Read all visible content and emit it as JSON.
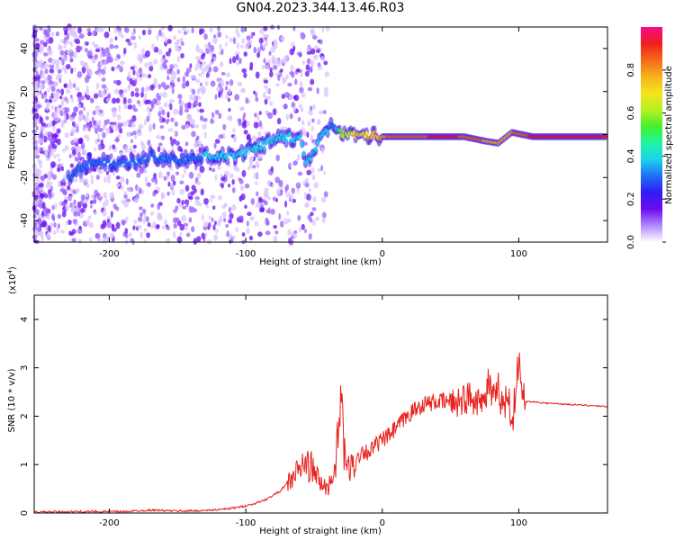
{
  "title": "GN04.2023.344.13.46.R03",
  "colors": {
    "snr_line": "#e8221e",
    "colorbar": [
      "#ffffff",
      "#b089ff",
      "#6a0cf0",
      "#2f1cf5",
      "#1f70f5",
      "#1cd2ec",
      "#1ef5a2",
      "#46f02a",
      "#b8f020",
      "#f5e51c",
      "#f5b21a",
      "#f56a1a",
      "#f01e1e",
      "#f50a8c"
    ]
  },
  "chart_data": [
    {
      "type": "heatmap",
      "xlabel": "Height of straight line (km)",
      "ylabel": "Frequency (Hz)",
      "xlim": [
        -255,
        165
      ],
      "ylim": [
        -50,
        50
      ],
      "xticks": [
        -200,
        -100,
        0,
        100
      ],
      "yticks": [
        -40,
        -20,
        0,
        20,
        40
      ],
      "colorbar": {
        "label": "Normalized spectral amplitude",
        "range": [
          0,
          1
        ],
        "ticks": [
          "0.0",
          "0.2",
          "0.4",
          "0.6",
          "0.8"
        ]
      },
      "ridge": [
        {
          "x": -230,
          "y": -20,
          "amp": 0.3
        },
        {
          "x": -215,
          "y": -13,
          "amp": 0.3
        },
        {
          "x": -180,
          "y": -13,
          "amp": 0.3
        },
        {
          "x": -170,
          "y": -10,
          "amp": 0.3
        },
        {
          "x": -150,
          "y": -12,
          "amp": 0.3
        },
        {
          "x": -130,
          "y": -10,
          "amp": 0.35
        },
        {
          "x": -110,
          "y": -10,
          "amp": 0.35
        },
        {
          "x": -90,
          "y": -6,
          "amp": 0.4
        },
        {
          "x": -75,
          "y": -1,
          "amp": 0.35
        },
        {
          "x": -60,
          "y": -2,
          "amp": 0.35
        },
        {
          "x": -55,
          "y": -14,
          "amp": 0.35
        },
        {
          "x": -45,
          "y": -1,
          "amp": 0.4
        },
        {
          "x": -35,
          "y": 5,
          "amp": 0.3
        },
        {
          "x": -30,
          "y": 0,
          "amp": 0.6
        },
        {
          "x": -15,
          "y": 0,
          "amp": 0.7
        },
        {
          "x": 0,
          "y": -1,
          "amp": 0.8
        },
        {
          "x": 20,
          "y": -1,
          "amp": 0.85
        },
        {
          "x": 40,
          "y": -1,
          "amp": 0.9
        },
        {
          "x": 60,
          "y": -1,
          "amp": 0.88
        },
        {
          "x": 75,
          "y": -3,
          "amp": 0.8
        },
        {
          "x": 85,
          "y": -4,
          "amp": 0.75
        },
        {
          "x": 95,
          "y": 1,
          "amp": 0.8
        },
        {
          "x": 110,
          "y": -1,
          "amp": 0.9
        },
        {
          "x": 165,
          "y": -1,
          "amp": 0.92
        }
      ]
    },
    {
      "type": "line",
      "xlabel": "Height of straight line (km)",
      "ylabel": "SNR (10 * v/v)",
      "y_multiplier": "(x10",
      "y_multiplier_exp": "4",
      "y_multiplier_close": ")",
      "xlim": [
        -255,
        165
      ],
      "ylim": [
        0,
        4.5
      ],
      "xticks": [
        -200,
        -100,
        0,
        100
      ],
      "yticks": [
        0,
        1,
        2,
        3,
        4
      ],
      "series": [
        {
          "x": [
            -255,
            -220,
            -190,
            -170,
            -150,
            -130,
            -115,
            -105,
            -95,
            -85,
            -75,
            -65,
            -58,
            -52,
            -45,
            -40,
            -35,
            -32,
            -30,
            -28,
            -25,
            -20,
            -15,
            -10,
            -5,
            0,
            5,
            10,
            15,
            20,
            25,
            30,
            40,
            50,
            60,
            65,
            70,
            72,
            75,
            78,
            80,
            83,
            85,
            88,
            90,
            93,
            95,
            98,
            100,
            102,
            105,
            110,
            120,
            140,
            165
          ],
          "y": [
            0.02,
            0.03,
            0.03,
            0.06,
            0.04,
            0.05,
            0.08,
            0.12,
            0.18,
            0.28,
            0.45,
            0.75,
            1.0,
            0.95,
            0.6,
            0.5,
            0.9,
            1.6,
            2.6,
            1.2,
            0.9,
            1.0,
            1.3,
            1.25,
            1.4,
            1.5,
            1.6,
            1.75,
            1.9,
            2.05,
            2.15,
            2.25,
            2.3,
            2.3,
            2.35,
            2.4,
            2.35,
            2.5,
            2.2,
            2.8,
            2.4,
            2.3,
            2.6,
            2.2,
            2.3,
            2.4,
            1.8,
            2.6,
            3.2,
            2.5,
            2.3,
            2.3,
            2.27,
            2.24,
            2.2
          ]
        }
      ]
    }
  ]
}
